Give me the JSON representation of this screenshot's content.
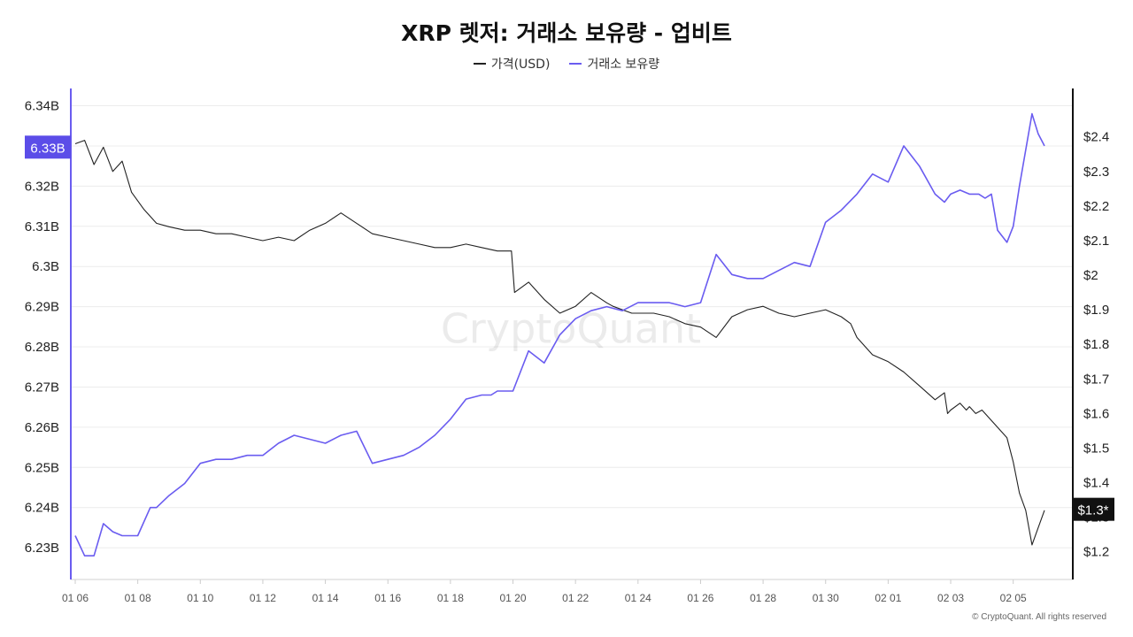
{
  "chart_data": {
    "type": "line",
    "title": "XRP 렛저: 거래소 보유량 - 업비트",
    "legend_position": "top-center",
    "grid": true,
    "watermark": "CryptoQuant",
    "copyright": "© CryptoQuant. All rights reserved",
    "x_ticks": [
      "01 06",
      "01 08",
      "01 10",
      "01 12",
      "01 14",
      "01 16",
      "01 18",
      "01 20",
      "01 22",
      "01 24",
      "01 26",
      "01 28",
      "01 30",
      "02 01",
      "02 03",
      "02 05"
    ],
    "x_range": [
      0,
      31
    ],
    "left_axis": {
      "ticks": [
        "6.34B",
        "6.33B",
        "6.32B",
        "6.31B",
        "6.3B",
        "6.29B",
        "6.28B",
        "6.27B",
        "6.26B",
        "6.25B",
        "6.24B",
        "6.23B"
      ],
      "tick_values": [
        6.34,
        6.33,
        6.32,
        6.31,
        6.3,
        6.29,
        6.28,
        6.27,
        6.26,
        6.25,
        6.24,
        6.23
      ],
      "range": [
        6.2221,
        6.3443
      ],
      "current_label": "6.33B",
      "current_value": 6.3297
    },
    "right_axis": {
      "ticks": [
        "$2.4",
        "$2.3",
        "$2.2",
        "$2.1",
        "$2",
        "$1.9",
        "$1.8",
        "$1.7",
        "$1.6",
        "$1.5",
        "$1.4",
        "$1.3",
        "$1.2"
      ],
      "tick_values": [
        2.4,
        2.3,
        2.2,
        2.1,
        2.0,
        1.9,
        1.8,
        1.7,
        1.6,
        1.5,
        1.4,
        1.3,
        1.2
      ],
      "range": [
        1.12,
        2.54
      ],
      "current_label": "$1.3*",
      "current_value": 1.323
    },
    "series": [
      {
        "name": "가격(USD)",
        "axis": "right",
        "color": "#222222",
        "x": [
          0,
          0.3,
          0.6,
          0.9,
          1.2,
          1.5,
          1.8,
          2.2,
          2.6,
          3.0,
          3.5,
          4.0,
          4.5,
          5.0,
          5.5,
          6.0,
          6.5,
          7.0,
          7.5,
          8.0,
          8.5,
          9.0,
          9.5,
          10.0,
          10.5,
          11.0,
          11.5,
          12.0,
          12.5,
          13.0,
          13.5,
          13.95,
          14.05,
          14.5,
          15.0,
          15.5,
          16.0,
          16.5,
          17.0,
          17.2,
          17.8,
          18.5,
          19.0,
          19.5,
          20.0,
          20.5,
          21.0,
          21.5,
          22.0,
          22.5,
          23.0,
          23.5,
          24.0,
          24.5,
          24.8,
          25.0,
          25.5,
          26.0,
          26.5,
          27.0,
          27.5,
          27.8,
          27.9,
          28.0,
          28.3,
          28.5,
          28.6,
          28.8,
          29.0,
          29.5,
          29.8,
          30.0,
          30.2,
          30.4,
          30.6,
          30.8,
          31.0
        ],
        "values": [
          2.38,
          2.39,
          2.32,
          2.37,
          2.3,
          2.33,
          2.24,
          2.19,
          2.15,
          2.14,
          2.13,
          2.13,
          2.12,
          2.12,
          2.11,
          2.1,
          2.11,
          2.1,
          2.13,
          2.15,
          2.18,
          2.15,
          2.12,
          2.11,
          2.1,
          2.09,
          2.08,
          2.08,
          2.09,
          2.08,
          2.07,
          2.07,
          1.95,
          1.98,
          1.93,
          1.89,
          1.91,
          1.95,
          1.92,
          1.91,
          1.89,
          1.89,
          1.88,
          1.86,
          1.85,
          1.82,
          1.88,
          1.9,
          1.91,
          1.89,
          1.88,
          1.89,
          1.9,
          1.88,
          1.86,
          1.82,
          1.77,
          1.75,
          1.72,
          1.68,
          1.64,
          1.66,
          1.6,
          1.61,
          1.63,
          1.61,
          1.62,
          1.6,
          1.61,
          1.56,
          1.53,
          1.46,
          1.37,
          1.32,
          1.22,
          1.27,
          1.32
        ]
      },
      {
        "name": "거래소 보유량",
        "axis": "left",
        "color": "#6a5cf0",
        "x": [
          0,
          0.3,
          0.6,
          0.9,
          1.2,
          1.5,
          2.0,
          2.4,
          2.6,
          3.0,
          3.5,
          4.0,
          4.5,
          5.0,
          5.5,
          6.0,
          6.5,
          7.0,
          7.5,
          8.0,
          8.5,
          9.0,
          9.5,
          10.0,
          10.5,
          11.0,
          11.5,
          12.0,
          12.5,
          13.0,
          13.3,
          13.5,
          14.0,
          14.5,
          15.0,
          15.5,
          16.0,
          16.5,
          17.0,
          17.5,
          18.0,
          18.5,
          19.0,
          19.5,
          20.0,
          20.5,
          21.0,
          21.5,
          22.0,
          22.5,
          23.0,
          23.5,
          24.0,
          24.5,
          25.0,
          25.5,
          26.0,
          26.5,
          27.0,
          27.5,
          27.8,
          28.0,
          28.3,
          28.6,
          28.9,
          29.1,
          29.3,
          29.5,
          29.8,
          30.0,
          30.2,
          30.4,
          30.6,
          30.8,
          31.0
        ],
        "values": [
          6.233,
          6.228,
          6.228,
          6.236,
          6.234,
          6.233,
          6.233,
          6.24,
          6.24,
          6.243,
          6.246,
          6.251,
          6.252,
          6.252,
          6.253,
          6.253,
          6.256,
          6.258,
          6.257,
          6.256,
          6.258,
          6.259,
          6.251,
          6.252,
          6.253,
          6.255,
          6.258,
          6.262,
          6.267,
          6.268,
          6.268,
          6.269,
          6.269,
          6.279,
          6.276,
          6.283,
          6.287,
          6.289,
          6.29,
          6.289,
          6.291,
          6.291,
          6.291,
          6.29,
          6.291,
          6.303,
          6.298,
          6.297,
          6.297,
          6.299,
          6.301,
          6.3,
          6.311,
          6.314,
          6.318,
          6.323,
          6.321,
          6.33,
          6.325,
          6.318,
          6.316,
          6.318,
          6.319,
          6.318,
          6.318,
          6.317,
          6.318,
          6.309,
          6.306,
          6.31,
          6.32,
          6.329,
          6.338,
          6.333,
          6.33
        ]
      }
    ]
  }
}
